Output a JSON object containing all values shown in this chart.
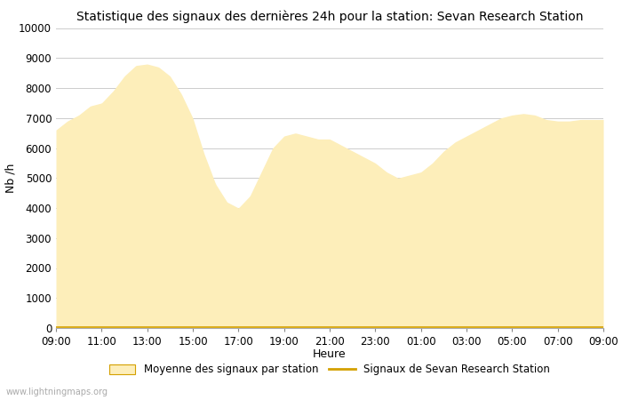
{
  "title": "Statistique des signaux des dernières 24h pour la station: Sevan Research Station",
  "xlabel": "Heure",
  "ylabel": "Nb /h",
  "watermark": "www.lightningmaps.org",
  "legend_fill_label": "Moyenne des signaux par station",
  "legend_line_label": "Signaux de Sevan Research Station",
  "fill_color": "#FDEEBA",
  "line_color": "#D4A000",
  "ylim": [
    0,
    10000
  ],
  "yticks": [
    0,
    1000,
    2000,
    3000,
    4000,
    5000,
    6000,
    7000,
    8000,
    9000,
    10000
  ],
  "xtick_labels": [
    "09:00",
    "11:00",
    "13:00",
    "15:00",
    "17:00",
    "19:00",
    "21:00",
    "23:00",
    "01:00",
    "03:00",
    "05:00",
    "07:00",
    "09:00"
  ],
  "background_color": "#ffffff",
  "grid_color": "#cccccc",
  "title_fontsize": 10,
  "label_fontsize": 9,
  "tick_fontsize": 8.5
}
